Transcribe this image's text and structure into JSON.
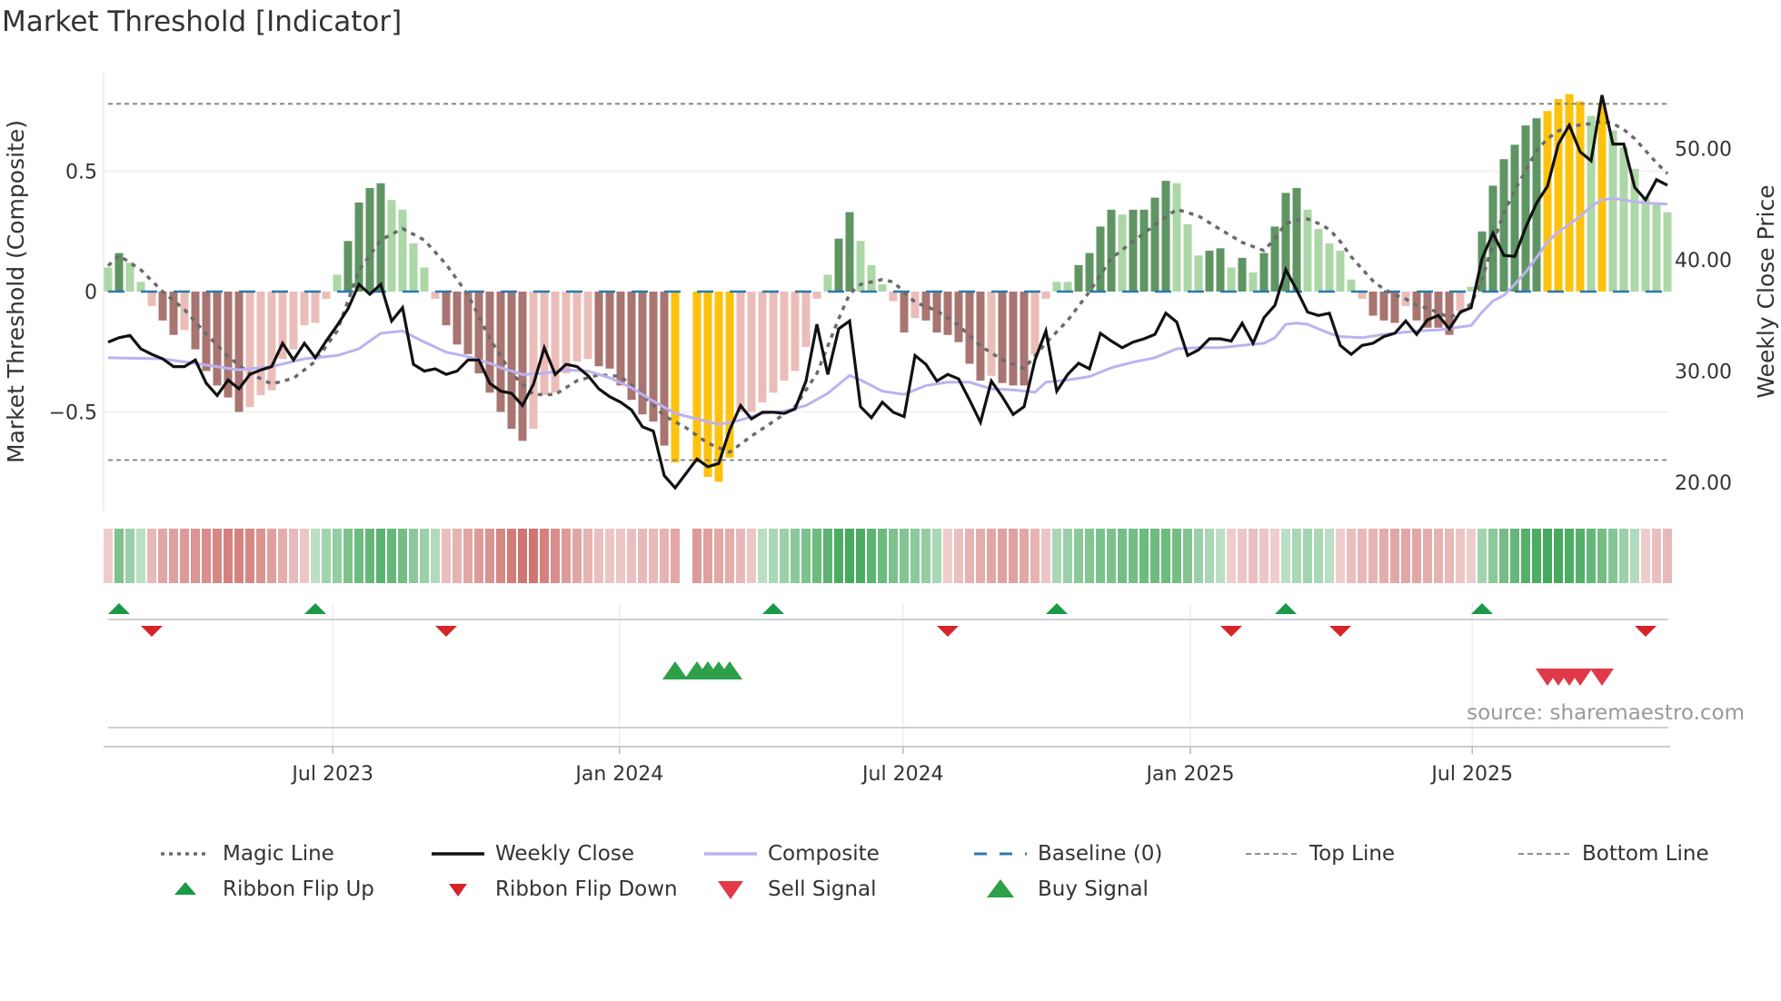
{
  "title": "Market Threshold [Indicator]",
  "source": "source: sharemaestro.com",
  "colors": {
    "bar_G": "#5f9563",
    "bar_g": "#acd7a6",
    "bar_R": "#a87571",
    "bar_r": "#ebbdb9",
    "bar_Y": "#fdc20c",
    "ribbon_pos": "#3ea557",
    "ribbon_neg": "#c9625f",
    "magic": "#6b6b6b",
    "close": "#111111",
    "composite": "#bcb2f0",
    "baseline": "#2a78ad",
    "threshold": "#808080",
    "flip_up": "#1a9a46",
    "flip_down": "#d62528",
    "buy": "#2ea04a",
    "sell": "#e03a48"
  },
  "chart_data": {
    "type": "bar",
    "title": "Market Threshold [Indicator]",
    "ylabel": "Market Threshold (Composite)",
    "y2label": "Weekly Close Price",
    "ylim": [
      -0.9,
      0.9
    ],
    "y2lim": [
      17,
      56
    ],
    "yticks": [
      {
        "v": 0.5,
        "label": "0.5"
      },
      {
        "v": 0,
        "label": "0"
      },
      {
        "v": -0.5,
        "label": "−0.5"
      }
    ],
    "y2ticks": [
      {
        "v": 50,
        "label": "50.00"
      },
      {
        "v": 40,
        "label": "40.00"
      },
      {
        "v": 30,
        "label": "30.00"
      },
      {
        "v": 20,
        "label": "20.00"
      }
    ],
    "xticks": [
      {
        "week": 20.6,
        "label": "Jul 2023"
      },
      {
        "week": 46.9,
        "label": "Jan 2024"
      },
      {
        "week": 72.9,
        "label": "Jul 2024"
      },
      {
        "week": 99.25,
        "label": "Jan 2025"
      },
      {
        "week": 125.1,
        "label": "Jul 2025"
      }
    ],
    "top_line": 0.78,
    "bottom_line": -0.7,
    "baseline": 0,
    "composite_bars": [
      0.1,
      0.16,
      0.12,
      0.04,
      -0.06,
      -0.12,
      -0.18,
      -0.16,
      -0.24,
      -0.33,
      -0.39,
      -0.44,
      -0.5,
      -0.48,
      -0.43,
      -0.41,
      -0.28,
      -0.24,
      -0.14,
      -0.13,
      -0.03,
      0.07,
      0.21,
      0.37,
      0.43,
      0.45,
      0.38,
      0.34,
      0.2,
      0.1,
      -0.03,
      -0.14,
      -0.22,
      -0.26,
      -0.34,
      -0.42,
      -0.5,
      -0.57,
      -0.62,
      -0.57,
      -0.43,
      -0.42,
      -0.34,
      -0.29,
      -0.28,
      -0.31,
      -0.32,
      -0.39,
      -0.45,
      -0.51,
      -0.54,
      -0.64,
      -0.71,
      null,
      -0.71,
      -0.77,
      -0.79,
      -0.69,
      -0.5,
      -0.5,
      -0.46,
      -0.42,
      -0.37,
      -0.33,
      -0.23,
      -0.03,
      0.07,
      0.22,
      0.33,
      0.21,
      0.11,
      0.03,
      -0.04,
      -0.17,
      -0.11,
      -0.12,
      -0.17,
      -0.18,
      -0.21,
      -0.3,
      -0.37,
      -0.35,
      -0.38,
      -0.39,
      -0.39,
      -0.26,
      -0.03,
      0.04,
      0.04,
      0.11,
      0.16,
      0.27,
      0.34,
      0.32,
      0.34,
      0.34,
      0.39,
      0.46,
      0.45,
      0.28,
      0.15,
      0.17,
      0.18,
      0.1,
      0.14,
      0.08,
      0.16,
      0.27,
      0.41,
      0.43,
      0.34,
      0.26,
      0.2,
      0.17,
      0.05,
      -0.03,
      -0.1,
      -0.12,
      -0.13,
      -0.06,
      -0.12,
      -0.15,
      -0.15,
      -0.18,
      -0.08,
      0.02,
      0.25,
      0.44,
      0.55,
      0.61,
      0.69,
      0.72,
      0.75,
      0.8,
      0.82,
      0.79,
      0.73,
      0.78,
      0.67,
      0.6,
      0.51,
      0.39,
      0.37,
      0.33
    ],
    "bar_states": "gGggrRRrRRRRRrrrrrrrrgGGGGggggrRRRRRRRRrrrrrrRRRRRRRY_YYYYrrrrrrrrgGGgggrRrRRRRRRrRRRrrggGGGGgGGGGgggGGgGgGGGGgggggrRRRrRRRRrgGGGGGGYYYYgYgggggg",
    "weekly_close": [
      32.6,
      33.0,
      33.2,
      32.0,
      31.5,
      31.1,
      30.4,
      30.4,
      31.0,
      28.9,
      27.8,
      29.2,
      28.4,
      29.7,
      30.1,
      30.4,
      32.5,
      31.0,
      32.5,
      31.2,
      32.7,
      34.1,
      35.6,
      37.8,
      36.9,
      37.8,
      34.5,
      35.7,
      30.6,
      30.0,
      30.2,
      29.7,
      30.0,
      31.0,
      31.0,
      28.9,
      28.2,
      28.0,
      26.9,
      28.8,
      32.1,
      29.7,
      30.6,
      30.4,
      29.6,
      28.4,
      27.7,
      27.2,
      26.5,
      25.0,
      24.6,
      20.6,
      19.5,
      20.8,
      22.1,
      21.4,
      21.7,
      24.7,
      26.9,
      25.7,
      26.3,
      26.3,
      26.2,
      26.6,
      29.1,
      34.2,
      29.7,
      33.8,
      34.5,
      26.8,
      25.8,
      27.2,
      26.3,
      25.9,
      31.4,
      30.6,
      29.1,
      29.7,
      29.3,
      27.4,
      25.4,
      29.1,
      27.7,
      26.1,
      26.8,
      31.0,
      33.6,
      28.2,
      29.7,
      30.7,
      30.2,
      33.4,
      32.7,
      32.1,
      32.6,
      32.9,
      33.3,
      35.2,
      34.4,
      31.4,
      31.9,
      32.9,
      32.9,
      32.7,
      34.3,
      32.5,
      34.8,
      35.9,
      39.1,
      37.3,
      35.3,
      35.0,
      35.2,
      32.3,
      31.5,
      32.3,
      32.5,
      33.1,
      33.4,
      34.5,
      33.3,
      34.6,
      35.0,
      33.8,
      35.3,
      35.7,
      40.1,
      42.4,
      40.4,
      40.3,
      42.9,
      45.1,
      46.6,
      50.4,
      52.1,
      49.7,
      48.9,
      54.8,
      50.4,
      50.4,
      46.5,
      45.4,
      47.2,
      46.7
    ],
    "magic_line": [
      [
        0,
        0.107
      ],
      [
        1,
        0.15
      ],
      [
        3,
        0.09
      ],
      [
        5,
        0
      ],
      [
        7,
        -0.075
      ],
      [
        9,
        -0.176
      ],
      [
        11,
        -0.27
      ],
      [
        13,
        -0.34
      ],
      [
        15,
        -0.384
      ],
      [
        17,
        -0.36
      ],
      [
        19,
        -0.29
      ],
      [
        21,
        -0.164
      ],
      [
        23,
        0.088
      ],
      [
        25,
        0.214
      ],
      [
        27,
        0.262
      ],
      [
        29,
        0.214
      ],
      [
        31,
        0.113
      ],
      [
        33,
        -0.013
      ],
      [
        35,
        -0.195
      ],
      [
        37,
        -0.34
      ],
      [
        39,
        -0.428
      ],
      [
        41,
        -0.428
      ],
      [
        43,
        -0.37
      ],
      [
        45,
        -0.346
      ],
      [
        47,
        -0.352
      ],
      [
        49,
        -0.428
      ],
      [
        51,
        -0.516
      ],
      [
        53,
        -0.566
      ],
      [
        55,
        -0.63
      ],
      [
        57,
        -0.667
      ],
      [
        59,
        -0.6
      ],
      [
        61,
        -0.54
      ],
      [
        63,
        -0.478
      ],
      [
        65,
        -0.34
      ],
      [
        67,
        -0.113
      ],
      [
        68,
        -0.01
      ],
      [
        69,
        0.03
      ],
      [
        71,
        0.05
      ],
      [
        72,
        0.04
      ],
      [
        74,
        -0.044
      ],
      [
        76,
        -0.08
      ],
      [
        78,
        -0.14
      ],
      [
        80,
        -0.226
      ],
      [
        82,
        -0.283
      ],
      [
        84,
        -0.32
      ],
      [
        86,
        -0.214
      ],
      [
        88,
        -0.12
      ],
      [
        90,
        0
      ],
      [
        92,
        0.138
      ],
      [
        94,
        0.208
      ],
      [
        96,
        0.277
      ],
      [
        98,
        0.342
      ],
      [
        100,
        0.314
      ],
      [
        102,
        0.258
      ],
      [
        104,
        0.204
      ],
      [
        106,
        0.17
      ],
      [
        107,
        0.22
      ],
      [
        108,
        0.283
      ],
      [
        109,
        0.296
      ],
      [
        110,
        0.302
      ],
      [
        111,
        0.283
      ],
      [
        112,
        0.258
      ],
      [
        113,
        0.208
      ],
      [
        114,
        0.145
      ],
      [
        115,
        0.094
      ],
      [
        116,
        0.044
      ],
      [
        117,
        0.01
      ],
      [
        118,
        -0.013
      ],
      [
        119,
        -0.031
      ],
      [
        120,
        -0.057
      ],
      [
        121,
        -0.069
      ],
      [
        122,
        -0.088
      ],
      [
        123,
        -0.107
      ],
      [
        124,
        -0.088
      ],
      [
        125,
        -0.05
      ],
      [
        126,
        0.05
      ],
      [
        127,
        0.2
      ],
      [
        128,
        0.327
      ],
      [
        129,
        0.421
      ],
      [
        130,
        0.503
      ],
      [
        131,
        0.585
      ],
      [
        132,
        0.635
      ],
      [
        133,
        0.667
      ],
      [
        134,
        0.686
      ],
      [
        135,
        0.692
      ],
      [
        136,
        0.698
      ],
      [
        137,
        0.707
      ],
      [
        138,
        0.698
      ],
      [
        139,
        0.673
      ],
      [
        140,
        0.635
      ],
      [
        141,
        0.585
      ],
      [
        142,
        0.535
      ],
      [
        143,
        0.49
      ]
    ],
    "composite_line": [
      [
        0,
        31.2
      ],
      [
        5,
        31.1
      ],
      [
        10,
        30.4
      ],
      [
        12,
        30.1
      ],
      [
        15,
        30.4
      ],
      [
        18,
        31.1
      ],
      [
        21,
        31.4
      ],
      [
        23,
        32.0
      ],
      [
        25,
        33.4
      ],
      [
        27,
        33.6
      ],
      [
        29,
        32.6
      ],
      [
        31,
        31.7
      ],
      [
        33,
        31.3
      ],
      [
        35,
        30.7
      ],
      [
        36,
        30.3
      ],
      [
        38,
        29.7
      ],
      [
        40,
        29.8
      ],
      [
        42,
        30.1
      ],
      [
        44,
        30.0
      ],
      [
        46,
        29.4
      ],
      [
        48,
        28.5
      ],
      [
        50,
        27.3
      ],
      [
        52,
        26.2
      ],
      [
        54,
        25.7
      ],
      [
        56,
        25.2
      ],
      [
        58,
        25.6
      ],
      [
        60,
        26.2
      ],
      [
        62,
        26.4
      ],
      [
        64,
        26.9
      ],
      [
        66,
        28.0
      ],
      [
        68,
        29.6
      ],
      [
        69,
        29.2
      ],
      [
        71,
        28.2
      ],
      [
        73,
        27.9
      ],
      [
        75,
        28.7
      ],
      [
        77,
        29.0
      ],
      [
        79,
        29.0
      ],
      [
        81,
        28.4
      ],
      [
        83,
        28.3
      ],
      [
        85,
        28.1
      ],
      [
        86,
        29.0
      ],
      [
        88,
        29.2
      ],
      [
        90,
        29.5
      ],
      [
        92,
        30.3
      ],
      [
        94,
        30.8
      ],
      [
        96,
        31.2
      ],
      [
        98,
        32.0
      ],
      [
        100,
        32.1
      ],
      [
        102,
        32.1
      ],
      [
        104,
        32.3
      ],
      [
        106,
        32.5
      ],
      [
        107,
        33.0
      ],
      [
        108,
        34.2
      ],
      [
        109,
        34.3
      ],
      [
        110,
        34.2
      ],
      [
        111,
        33.8
      ],
      [
        112,
        33.4
      ],
      [
        113,
        33.1
      ],
      [
        115,
        33.0
      ],
      [
        117,
        33.3
      ],
      [
        120,
        33.6
      ],
      [
        122,
        33.7
      ],
      [
        125,
        34.1
      ],
      [
        126,
        35.3
      ],
      [
        127,
        36.3
      ],
      [
        128,
        36.8
      ],
      [
        129,
        37.8
      ],
      [
        130,
        38.9
      ],
      [
        131,
        40.2
      ],
      [
        132,
        41.6
      ],
      [
        133,
        42.5
      ],
      [
        134,
        43.2
      ],
      [
        135,
        43.9
      ],
      [
        136,
        44.8
      ],
      [
        137,
        45.4
      ],
      [
        138,
        45.5
      ],
      [
        139,
        45.4
      ],
      [
        140,
        45.2
      ],
      [
        141,
        45.1
      ],
      [
        143,
        45.0
      ]
    ],
    "ribbon": [
      -0.15,
      0.6,
      0.4,
      0.2,
      -0.3,
      -0.45,
      -0.5,
      -0.55,
      -0.6,
      -0.65,
      -0.7,
      -0.75,
      -0.75,
      -0.7,
      -0.6,
      -0.5,
      -0.4,
      -0.3,
      -0.2,
      0.2,
      0.35,
      0.45,
      0.6,
      0.7,
      0.75,
      0.8,
      0.75,
      0.65,
      0.5,
      0.4,
      0.25,
      -0.25,
      -0.35,
      -0.45,
      -0.55,
      -0.6,
      -0.7,
      -0.8,
      -0.85,
      -0.85,
      -0.75,
      -0.65,
      -0.55,
      -0.45,
      -0.35,
      -0.25,
      -0.2,
      -0.2,
      -0.25,
      -0.3,
      -0.3,
      -0.35,
      -0.45,
      null,
      -0.55,
      -0.5,
      -0.45,
      -0.4,
      -0.3,
      -0.2,
      0.2,
      0.3,
      0.4,
      0.5,
      0.6,
      0.7,
      0.8,
      0.9,
      0.95,
      0.9,
      0.8,
      0.7,
      0.6,
      0.55,
      0.5,
      0.45,
      0.3,
      -0.15,
      -0.25,
      -0.35,
      -0.4,
      -0.45,
      -0.5,
      -0.5,
      -0.45,
      -0.35,
      -0.2,
      0.3,
      0.4,
      0.5,
      0.55,
      0.6,
      0.6,
      0.65,
      0.65,
      0.7,
      0.7,
      0.7,
      0.65,
      0.55,
      0.4,
      0.3,
      0.2,
      -0.15,
      -0.2,
      -0.25,
      -0.2,
      -0.15,
      0.2,
      0.3,
      0.35,
      0.3,
      0.2,
      -0.15,
      -0.25,
      -0.3,
      -0.35,
      -0.4,
      -0.45,
      -0.45,
      -0.45,
      -0.4,
      -0.35,
      -0.3,
      -0.2,
      -0.15,
      0.35,
      0.5,
      0.65,
      0.75,
      0.85,
      0.9,
      0.95,
      0.95,
      0.9,
      0.85,
      0.75,
      0.65,
      0.55,
      0.4,
      0.25,
      -0.15,
      -0.25,
      -0.3
    ],
    "ribbon_flip_up": [
      1,
      19,
      61,
      87,
      108,
      126
    ],
    "ribbon_flip_down": [
      4,
      31,
      77,
      103,
      113,
      141
    ],
    "buy_signals": [
      52,
      54,
      55,
      56,
      57
    ],
    "sell_signals": [
      132,
      133,
      134,
      135,
      137
    ],
    "legend": {
      "magic": "Magic Line",
      "close": "Weekly Close",
      "composite": "Composite",
      "baseline": "Baseline (0)",
      "top": "Top Line",
      "bottom": "Bottom Line",
      "flip_up": "Ribbon Flip Up",
      "flip_down": "Ribbon Flip Down",
      "sell": "Sell Signal",
      "buy": "Buy Signal"
    }
  }
}
